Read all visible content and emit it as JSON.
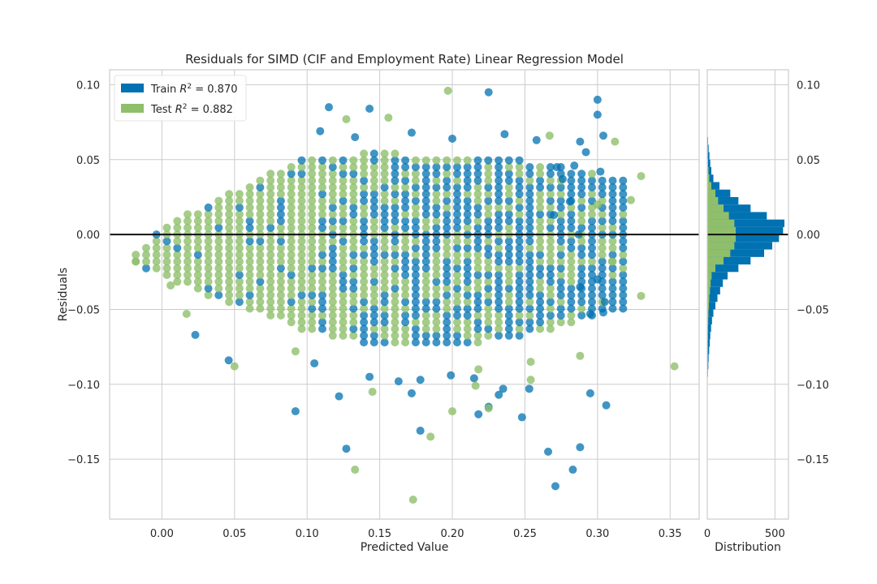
{
  "colors": {
    "train": "#0072B2",
    "test": "#8FBF6B",
    "zero_line": "#111111",
    "grid": "#CCCCCC",
    "frame": "#CCCCCC"
  },
  "chart_data": [
    {
      "type": "scatter",
      "title": "Residuals for SIMD (CIF and Employment Rate) Linear Regression Model",
      "xlabel": "Predicted Value",
      "ylabel": "Residuals",
      "xlim": [
        -0.036,
        0.37
      ],
      "ylim": [
        -0.19,
        0.11
      ],
      "xticks": [
        0.0,
        0.05,
        0.1,
        0.15,
        0.2,
        0.25,
        0.3,
        0.35
      ],
      "xtick_labels": [
        "0.00",
        "0.05",
        "0.10",
        "0.15",
        "0.20",
        "0.25",
        "0.30",
        "0.35"
      ],
      "yticks": [
        0.1,
        0.05,
        0.0,
        -0.05,
        -0.1,
        -0.15
      ],
      "ytick_labels": [
        "0.10",
        "0.05",
        "0.00",
        "−0.05",
        "−0.10",
        "−0.15"
      ],
      "grid": true,
      "zero_line": 0,
      "legend": {
        "placement": "top-left",
        "entries": [
          {
            "prefix": "Train ",
            "stat": "R",
            "sup": "2",
            "suffix": " = 0.870",
            "series": "train"
          },
          {
            "prefix": "Test ",
            "stat": "R",
            "sup": "2",
            "suffix": " = 0.882",
            "series": "test"
          }
        ]
      },
      "dense_grid": {
        "x_step": 0.00714,
        "y_step": 0.0045,
        "envelope_x": [
          -0.018,
          0.0,
          0.05,
          0.1,
          0.15,
          0.2,
          0.25,
          0.3,
          0.32
        ],
        "envelope_upper": [
          -0.013,
          0.006,
          0.03,
          0.052,
          0.055,
          0.051,
          0.05,
          0.04,
          0.036
        ],
        "envelope_lower": [
          -0.018,
          -0.026,
          -0.046,
          -0.062,
          -0.072,
          -0.073,
          -0.066,
          -0.052,
          -0.05
        ],
        "test_fraction_x": [
          -0.02,
          0.08,
          0.18,
          0.26,
          0.33
        ],
        "test_fraction": [
          0.92,
          0.82,
          0.48,
          0.3,
          0.2
        ]
      },
      "train_points": [
        {
          "x": 0.115,
          "y": 0.085
        },
        {
          "x": 0.143,
          "y": 0.084
        },
        {
          "x": 0.225,
          "y": 0.095
        },
        {
          "x": 0.3,
          "y": 0.09
        },
        {
          "x": 0.3,
          "y": 0.08
        },
        {
          "x": 0.109,
          "y": 0.069
        },
        {
          "x": 0.172,
          "y": 0.068
        },
        {
          "x": 0.236,
          "y": 0.067
        },
        {
          "x": 0.304,
          "y": 0.066
        },
        {
          "x": 0.133,
          "y": 0.065
        },
        {
          "x": 0.2,
          "y": 0.064
        },
        {
          "x": 0.258,
          "y": 0.063
        },
        {
          "x": 0.288,
          "y": 0.062
        },
        {
          "x": 0.292,
          "y": 0.055
        },
        {
          "x": 0.302,
          "y": 0.042
        },
        {
          "x": 0.272,
          "y": 0.045
        },
        {
          "x": 0.276,
          "y": 0.037
        },
        {
          "x": 0.284,
          "y": 0.046
        },
        {
          "x": 0.281,
          "y": 0.022
        },
        {
          "x": 0.27,
          "y": 0.013
        },
        {
          "x": 0.287,
          "y": 0.0
        },
        {
          "x": 0.3,
          "y": -0.03
        },
        {
          "x": 0.288,
          "y": -0.035
        },
        {
          "x": 0.295,
          "y": -0.053
        },
        {
          "x": 0.304,
          "y": -0.052
        },
        {
          "x": 0.023,
          "y": -0.067
        },
        {
          "x": 0.046,
          "y": -0.084
        },
        {
          "x": 0.092,
          "y": -0.118
        },
        {
          "x": 0.122,
          "y": -0.108
        },
        {
          "x": 0.105,
          "y": -0.086
        },
        {
          "x": 0.143,
          "y": -0.095
        },
        {
          "x": 0.163,
          "y": -0.098
        },
        {
          "x": 0.178,
          "y": -0.097
        },
        {
          "x": 0.199,
          "y": -0.094
        },
        {
          "x": 0.215,
          "y": -0.096
        },
        {
          "x": 0.235,
          "y": -0.103
        },
        {
          "x": 0.253,
          "y": -0.103
        },
        {
          "x": 0.172,
          "y": -0.106
        },
        {
          "x": 0.225,
          "y": -0.115
        },
        {
          "x": 0.218,
          "y": -0.12
        },
        {
          "x": 0.248,
          "y": -0.122
        },
        {
          "x": 0.306,
          "y": -0.114
        },
        {
          "x": 0.295,
          "y": -0.106
        },
        {
          "x": 0.178,
          "y": -0.131
        },
        {
          "x": 0.127,
          "y": -0.143
        },
        {
          "x": 0.266,
          "y": -0.145
        },
        {
          "x": 0.288,
          "y": -0.142
        },
        {
          "x": 0.283,
          "y": -0.157
        },
        {
          "x": 0.271,
          "y": -0.168
        },
        {
          "x": 0.232,
          "y": -0.107
        },
        {
          "x": 0.305,
          "y": -0.045
        }
      ],
      "test_points": [
        {
          "x": 0.197,
          "y": 0.096
        },
        {
          "x": 0.127,
          "y": 0.077
        },
        {
          "x": 0.156,
          "y": 0.078
        },
        {
          "x": 0.267,
          "y": 0.066
        },
        {
          "x": 0.312,
          "y": 0.062
        },
        {
          "x": 0.33,
          "y": 0.039
        },
        {
          "x": 0.323,
          "y": 0.023
        },
        {
          "x": 0.3,
          "y": 0.02
        },
        {
          "x": 0.31,
          "y": -0.018
        },
        {
          "x": 0.33,
          "y": -0.041
        },
        {
          "x": 0.288,
          "y": -0.081
        },
        {
          "x": 0.353,
          "y": -0.088
        },
        {
          "x": 0.05,
          "y": -0.088
        },
        {
          "x": 0.017,
          "y": -0.053
        },
        {
          "x": 0.092,
          "y": -0.078
        },
        {
          "x": 0.145,
          "y": -0.105
        },
        {
          "x": 0.2,
          "y": -0.118
        },
        {
          "x": 0.185,
          "y": -0.135
        },
        {
          "x": 0.133,
          "y": -0.157
        },
        {
          "x": 0.173,
          "y": -0.177
        },
        {
          "x": 0.254,
          "y": -0.097
        },
        {
          "x": 0.254,
          "y": -0.085
        },
        {
          "x": 0.218,
          "y": -0.09
        },
        {
          "x": 0.225,
          "y": -0.116
        },
        {
          "x": 0.006,
          "y": -0.034
        },
        {
          "x": -0.018,
          "y": -0.018
        },
        {
          "x": 0.216,
          "y": -0.101
        }
      ]
    },
    {
      "type": "histogram",
      "orientation": "horizontal",
      "xlabel": "Distribution",
      "xticks": [
        0,
        500
      ],
      "xtick_labels": [
        "0",
        "500"
      ],
      "xlim": [
        0,
        600
      ],
      "yticks": [
        0.1,
        0.05,
        0.0,
        -0.05,
        -0.1,
        -0.15
      ],
      "ytick_labels": [
        "0.10",
        "0.05",
        "0.00",
        "−0.05",
        "−0.10",
        "−0.15"
      ],
      "bin_edges": [
        -0.105,
        -0.1,
        -0.095,
        -0.09,
        -0.085,
        -0.08,
        -0.075,
        -0.07,
        -0.065,
        -0.06,
        -0.055,
        -0.05,
        -0.045,
        -0.04,
        -0.035,
        -0.03,
        -0.025,
        -0.02,
        -0.015,
        -0.01,
        -0.005,
        0.0,
        0.005,
        0.01,
        0.015,
        0.02,
        0.025,
        0.03,
        0.035,
        0.04,
        0.045,
        0.05,
        0.055,
        0.06,
        0.065,
        0.07
      ],
      "train_counts": [
        2,
        3,
        5,
        8,
        10,
        14,
        18,
        22,
        28,
        35,
        45,
        60,
        75,
        95,
        115,
        150,
        230,
        320,
        420,
        480,
        530,
        560,
        570,
        440,
        320,
        230,
        170,
        90,
        45,
        30,
        22,
        16,
        10,
        6,
        3
      ],
      "test_counts": [
        0,
        0,
        0,
        1,
        1,
        2,
        3,
        4,
        5,
        7,
        9,
        12,
        15,
        20,
        25,
        32,
        60,
        120,
        170,
        200,
        210,
        210,
        200,
        160,
        120,
        80,
        60,
        30,
        15,
        9,
        6,
        4,
        2,
        1,
        0
      ]
    }
  ]
}
